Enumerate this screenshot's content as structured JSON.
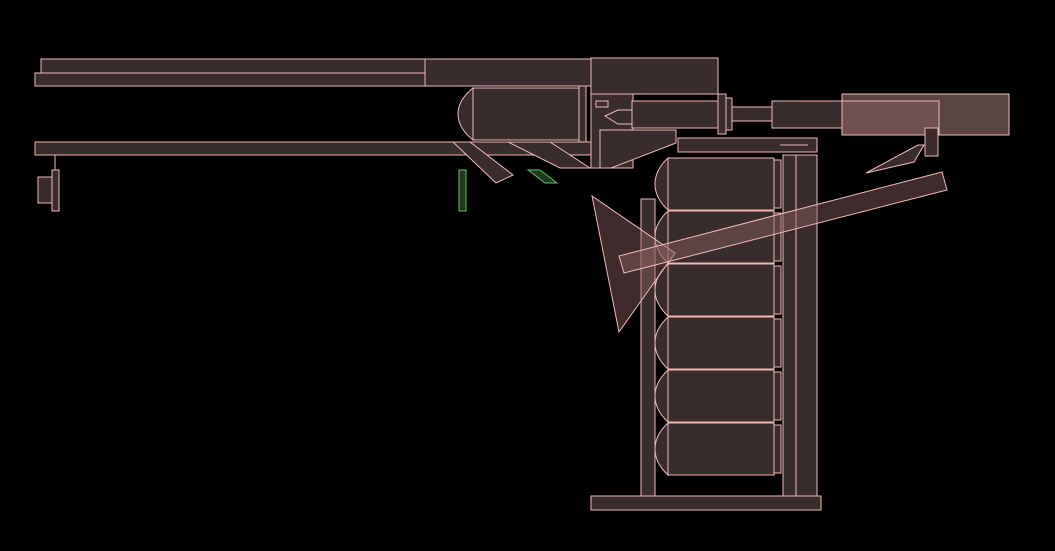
{
  "scene": {
    "background_color": "#000000",
    "part_fill_color": "#382c2c",
    "part_outline_color": "#f2b8b8",
    "selected_outline_color": "#5ec05e"
  }
}
